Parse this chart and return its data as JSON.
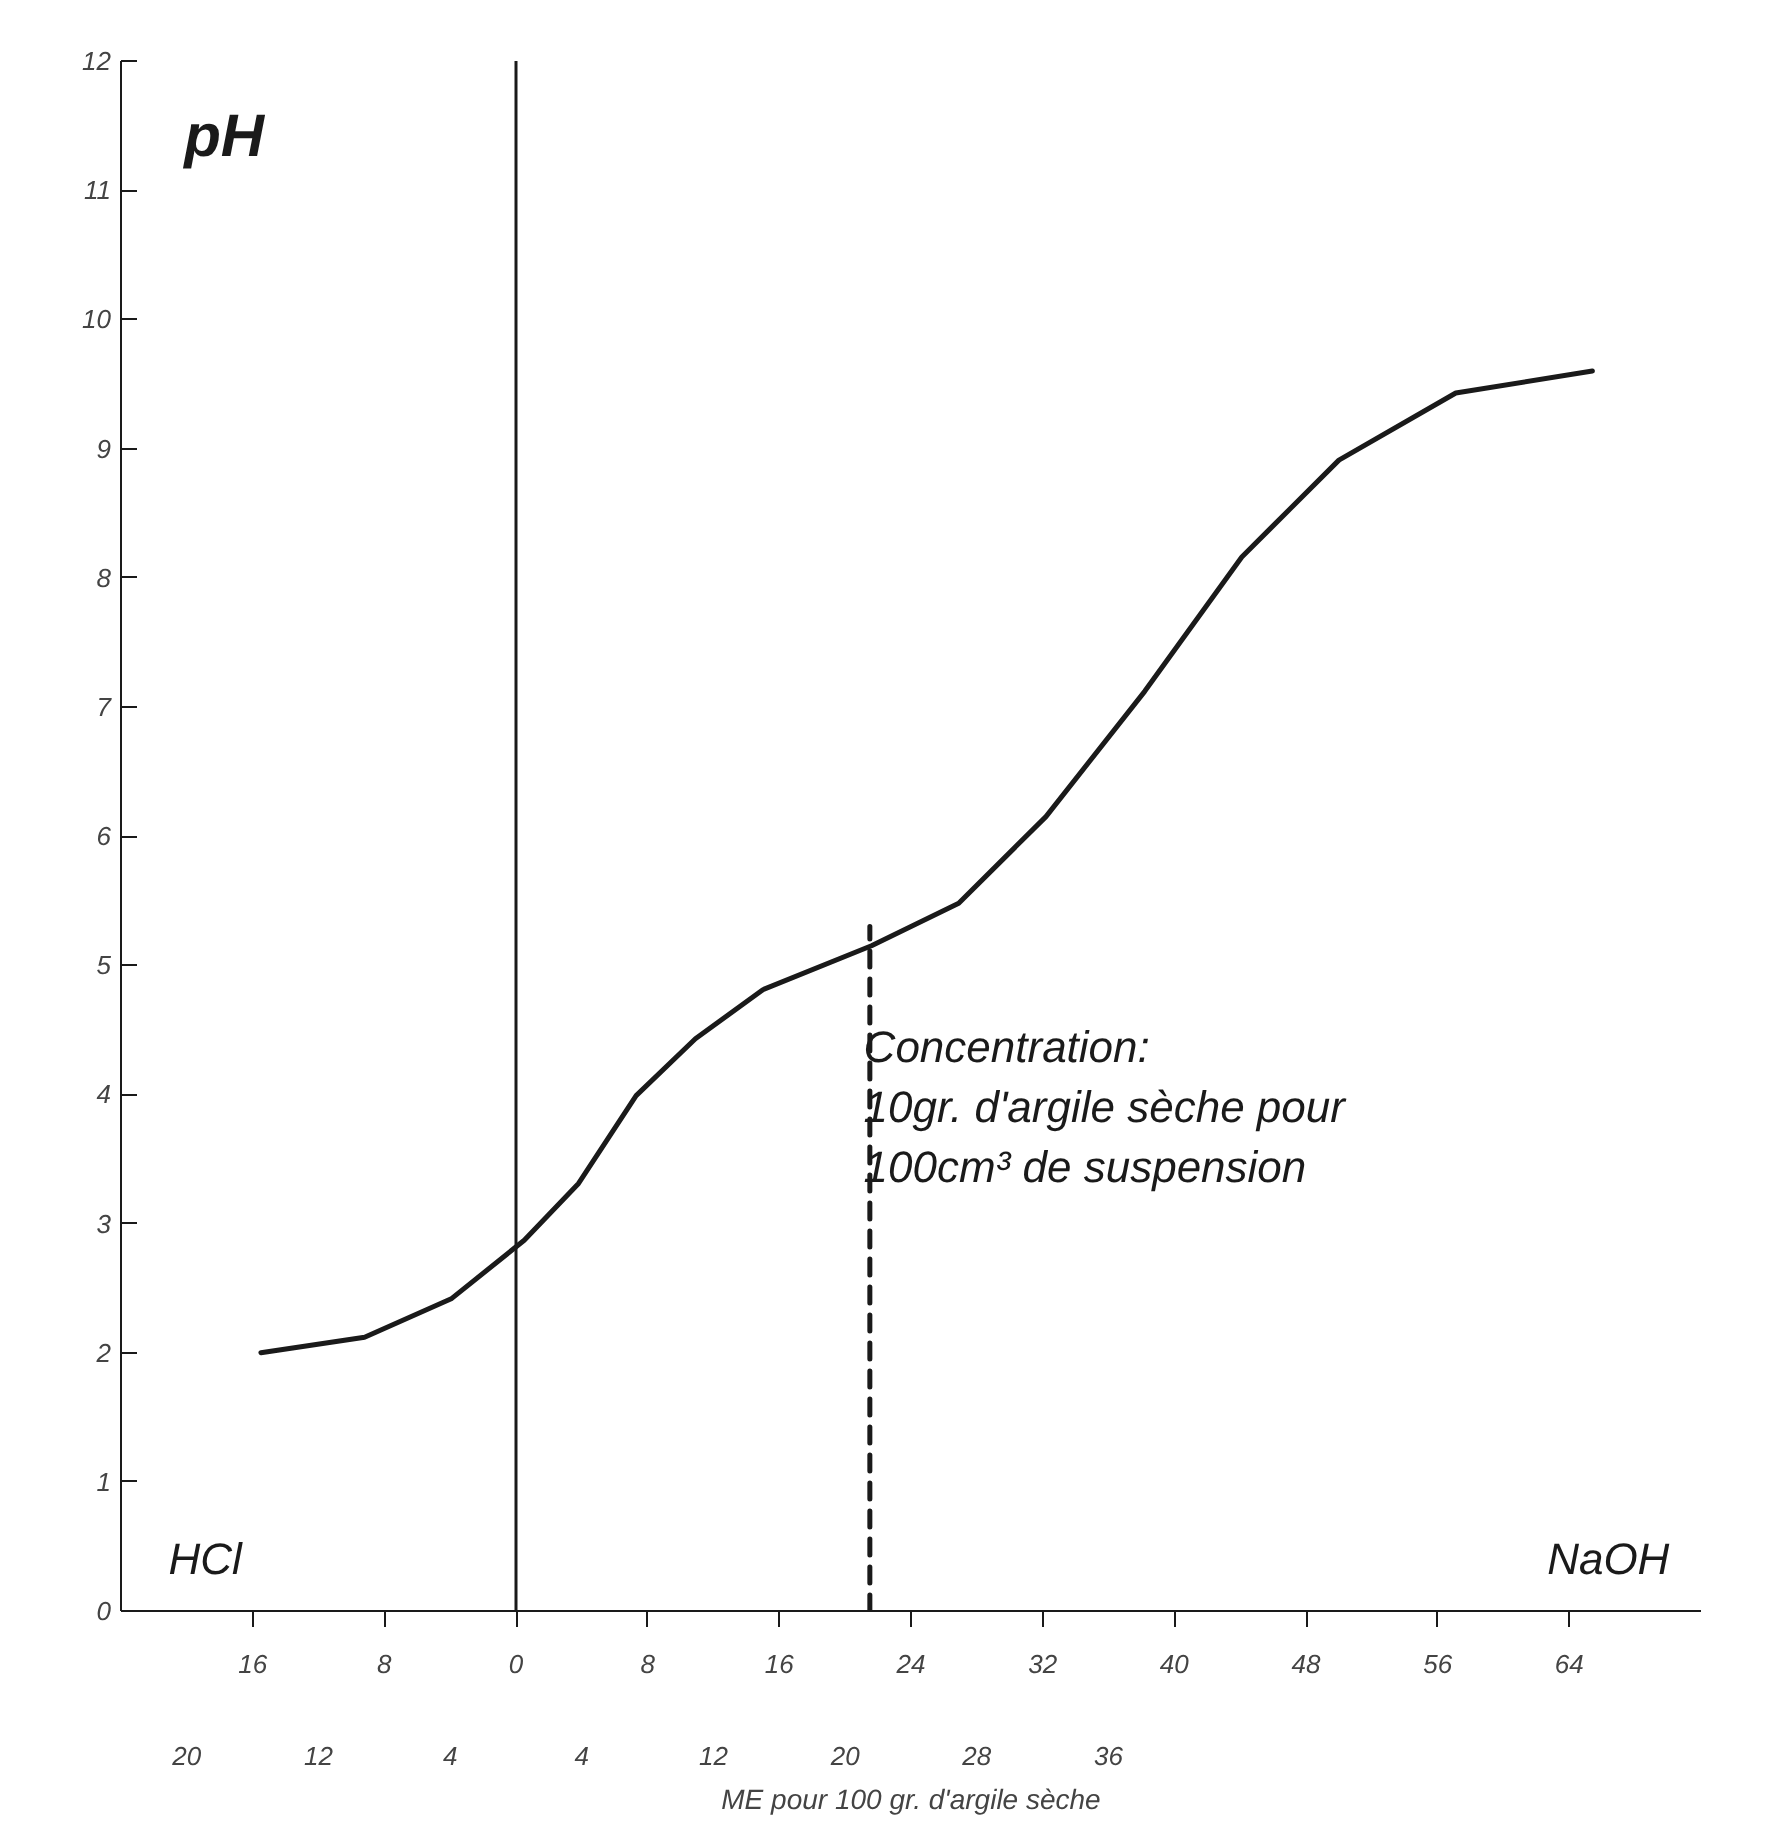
{
  "chart_data": {
    "type": "line",
    "xlabel": "ME pour 100 gr. d'argile sèche",
    "ylabel": "pH",
    "xlim": [
      -24,
      72
    ],
    "ylim": [
      0,
      12
    ],
    "xticks": [
      {
        "value": -16,
        "label": "16"
      },
      {
        "value": -8,
        "label": "8"
      },
      0,
      8,
      16,
      24,
      32,
      40,
      48,
      56,
      64
    ],
    "x2lim": [
      -24,
      72
    ],
    "x2ticks": [
      {
        "value": -20,
        "label": "20"
      },
      {
        "value": -12,
        "label": "12"
      },
      {
        "value": -4,
        "label": "4"
      },
      4,
      12,
      20,
      28,
      36
    ],
    "yticks": [
      0,
      1,
      2,
      3,
      4,
      5,
      6,
      7,
      8,
      9,
      10,
      11,
      12
    ],
    "series": [
      {
        "color": "#1a1a1a",
        "x": [
          -15.5,
          -9.2,
          -3.9,
          0.5,
          3.8,
          7.3,
          10.9,
          15.0,
          21.6,
          26.9,
          32.2,
          38.2,
          44.1,
          50.0,
          57.1,
          65.4
        ],
        "values": [
          2.0,
          2.12,
          2.42,
          2.87,
          3.31,
          3.99,
          4.43,
          4.81,
          5.15,
          5.48,
          6.15,
          7.12,
          8.16,
          8.91,
          9.43,
          9.6
        ]
      },
      {
        "color": "#1a1a1a",
        "x": [
          21.5,
          21.5
        ],
        "values": [
          0,
          5.3
        ],
        "line_style": "dashed"
      }
    ],
    "ref_lines": [
      {
        "axis": "x",
        "value": 0,
        "label": null,
        "color": "#1a1a1a"
      }
    ],
    "annotations": [
      "HCl",
      "NaOH",
      "Concentration:\n10gr. d'argile sèche pour\n100cm³ de suspension"
    ],
    "grid": false,
    "marker": "none",
    "line_style": "solid"
  }
}
